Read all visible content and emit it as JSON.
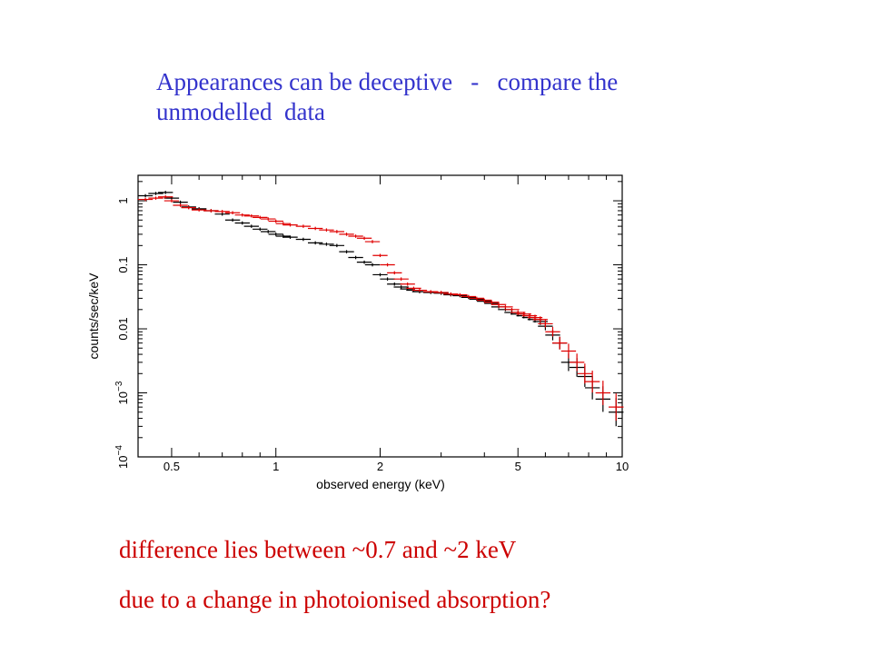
{
  "slide": {
    "heading_line1": "Appearances can be deceptive   -   compare the",
    "heading_line2": "unmodelled  data",
    "caption1": "difference lies between ~0.7 and ~2 keV",
    "caption2": "due to a change in photoionised absorption?"
  },
  "colors": {
    "heading": "#3333cc",
    "caption": "#cc0000",
    "series_black": "#000000",
    "series_red": "#e00000"
  },
  "chart_data": {
    "type": "scatter",
    "xlabel": "observed energy (keV)",
    "ylabel": "counts/sec/keV",
    "xscale": "log",
    "yscale": "log",
    "xlim": [
      0.4,
      10
    ],
    "ylim": [
      0.0001,
      2.5
    ],
    "grid": false,
    "x_ticks": [
      {
        "value": 0.5,
        "label": "0.5"
      },
      {
        "value": 1,
        "label": "1"
      },
      {
        "value": 2,
        "label": "2"
      },
      {
        "value": 5,
        "label": "5"
      },
      {
        "value": 10,
        "label": "10"
      }
    ],
    "y_ticks": [
      {
        "value": 1,
        "label": "1",
        "exp": ""
      },
      {
        "value": 0.1,
        "label": "0.1",
        "exp": ""
      },
      {
        "value": 0.01,
        "label": "0.01",
        "exp": ""
      },
      {
        "value": 0.001,
        "label": "10",
        "exp": "−3"
      },
      {
        "value": 0.0001,
        "label": "10",
        "exp": "−4"
      }
    ],
    "series": [
      {
        "color": "#000000",
        "x": [
          0.42,
          0.45,
          0.48,
          0.5,
          0.53,
          0.56,
          0.6,
          0.65,
          0.7,
          0.75,
          0.8,
          0.85,
          0.9,
          0.95,
          1.0,
          1.05,
          1.1,
          1.2,
          1.3,
          1.4,
          1.5,
          1.6,
          1.7,
          1.8,
          1.9,
          2.0,
          2.1,
          2.2,
          2.3,
          2.4,
          2.5,
          2.6,
          2.8,
          3.0,
          3.2,
          3.4,
          3.6,
          3.8,
          4.0,
          4.2,
          4.4,
          4.6,
          4.8,
          5.0,
          5.2,
          5.4,
          5.6,
          5.8,
          6.0,
          6.3,
          6.6,
          7.0,
          7.4,
          7.8,
          8.2,
          8.8,
          9.6
        ],
        "y": [
          1.2,
          1.3,
          1.35,
          1.1,
          0.95,
          0.8,
          0.75,
          0.7,
          0.62,
          0.5,
          0.45,
          0.4,
          0.36,
          0.33,
          0.3,
          0.28,
          0.27,
          0.25,
          0.22,
          0.21,
          0.2,
          0.16,
          0.13,
          0.11,
          0.1,
          0.07,
          0.06,
          0.05,
          0.045,
          0.042,
          0.04,
          0.038,
          0.037,
          0.036,
          0.034,
          0.033,
          0.031,
          0.029,
          0.027,
          0.025,
          0.022,
          0.02,
          0.018,
          0.017,
          0.016,
          0.015,
          0.014,
          0.013,
          0.011,
          0.008,
          0.006,
          0.003,
          0.0025,
          0.0018,
          0.0012,
          0.0008,
          0.0005
        ]
      },
      {
        "color": "#e00000",
        "x": [
          0.42,
          0.45,
          0.48,
          0.5,
          0.53,
          0.56,
          0.6,
          0.65,
          0.7,
          0.75,
          0.8,
          0.85,
          0.9,
          0.95,
          1.0,
          1.05,
          1.1,
          1.2,
          1.3,
          1.4,
          1.5,
          1.6,
          1.7,
          1.8,
          1.9,
          2.0,
          2.1,
          2.2,
          2.3,
          2.4,
          2.5,
          2.6,
          2.8,
          3.0,
          3.2,
          3.4,
          3.6,
          3.8,
          4.0,
          4.2,
          4.4,
          4.6,
          4.8,
          5.0,
          5.2,
          5.4,
          5.6,
          5.8,
          6.0,
          6.3,
          6.6,
          7.0,
          7.4,
          7.8,
          8.2,
          8.8,
          9.6
        ],
        "y": [
          1.05,
          1.1,
          1.15,
          1.0,
          0.85,
          0.78,
          0.72,
          0.7,
          0.68,
          0.65,
          0.6,
          0.58,
          0.55,
          0.52,
          0.48,
          0.44,
          0.42,
          0.4,
          0.37,
          0.35,
          0.33,
          0.3,
          0.28,
          0.26,
          0.23,
          0.14,
          0.1,
          0.075,
          0.06,
          0.05,
          0.043,
          0.04,
          0.038,
          0.037,
          0.035,
          0.034,
          0.032,
          0.03,
          0.028,
          0.026,
          0.024,
          0.022,
          0.02,
          0.018,
          0.017,
          0.016,
          0.015,
          0.014,
          0.012,
          0.009,
          0.006,
          0.0045,
          0.003,
          0.002,
          0.0015,
          0.001,
          0.0006
        ]
      }
    ]
  }
}
